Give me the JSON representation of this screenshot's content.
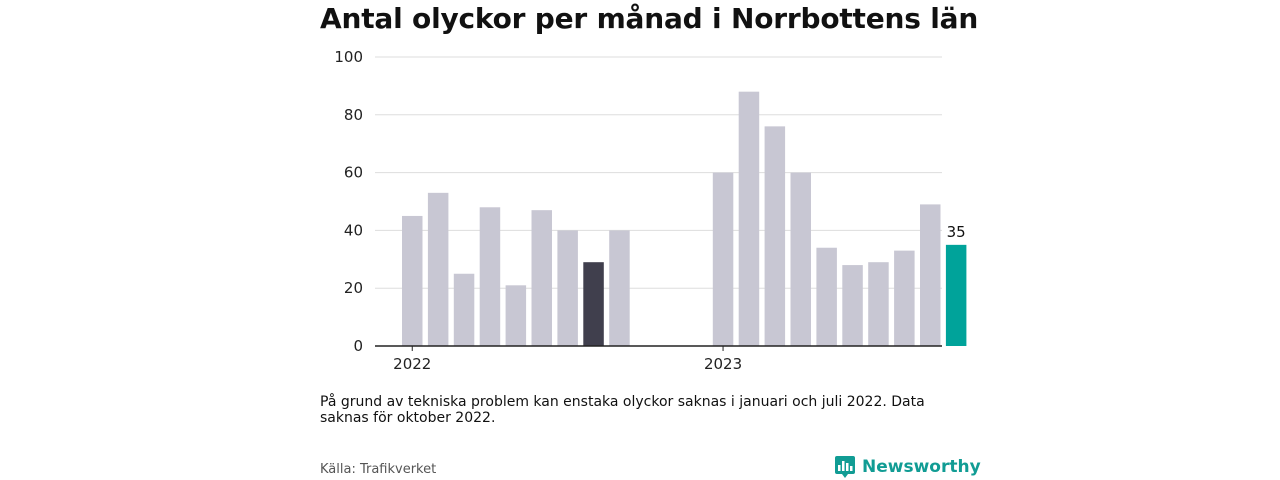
{
  "title": "Antal olyckor per månad i Norrbottens län",
  "note": "På grund av tekniska problem kan enstaka olyckor saknas i januari och juli 2022. Data saknas för oktober 2022.",
  "source": "Källa: Trafikverket",
  "brand": {
    "name": "Newsworthy",
    "logo_icon": "bar-chart-speech-bubble-icon"
  },
  "colors": {
    "bar": "#c8c7d3",
    "bar_highlight_dark": "#403f4d",
    "bar_highlight_accent": "#00a39a",
    "grid": "#dddddd",
    "axis": "#222222"
  },
  "chart_data": {
    "type": "bar",
    "title": "Antal olyckor per månad i Norrbottens län",
    "xlabel": "",
    "ylabel": "",
    "ylim": [
      0,
      100
    ],
    "yticks": [
      0,
      20,
      40,
      60,
      80,
      100
    ],
    "grid": true,
    "x_tick_labels": [
      {
        "label": "2022",
        "at": "2022-01"
      },
      {
        "label": "2023",
        "at": "2023-01"
      }
    ],
    "categories": [
      "2022-01",
      "2022-02",
      "2022-03",
      "2022-04",
      "2022-05",
      "2022-06",
      "2022-07",
      "2022-08",
      "2022-09",
      "2022-10",
      "2022-11",
      "2022-12",
      "2023-01",
      "2023-02",
      "2023-03",
      "2023-04",
      "2023-05",
      "2023-06",
      "2023-07",
      "2023-08",
      "2023-09",
      "2023-10",
      "2023-11",
      "2023-12"
    ],
    "values": [
      45,
      53,
      25,
      48,
      21,
      47,
      40,
      29,
      40,
      null,
      null,
      null,
      60,
      88,
      76,
      60,
      34,
      28,
      29,
      33,
      49,
      35,
      null,
      null
    ],
    "highlights": [
      {
        "category": "2022-08",
        "style": "dark"
      },
      {
        "category": "2023-10",
        "style": "accent",
        "label": "35"
      }
    ]
  }
}
